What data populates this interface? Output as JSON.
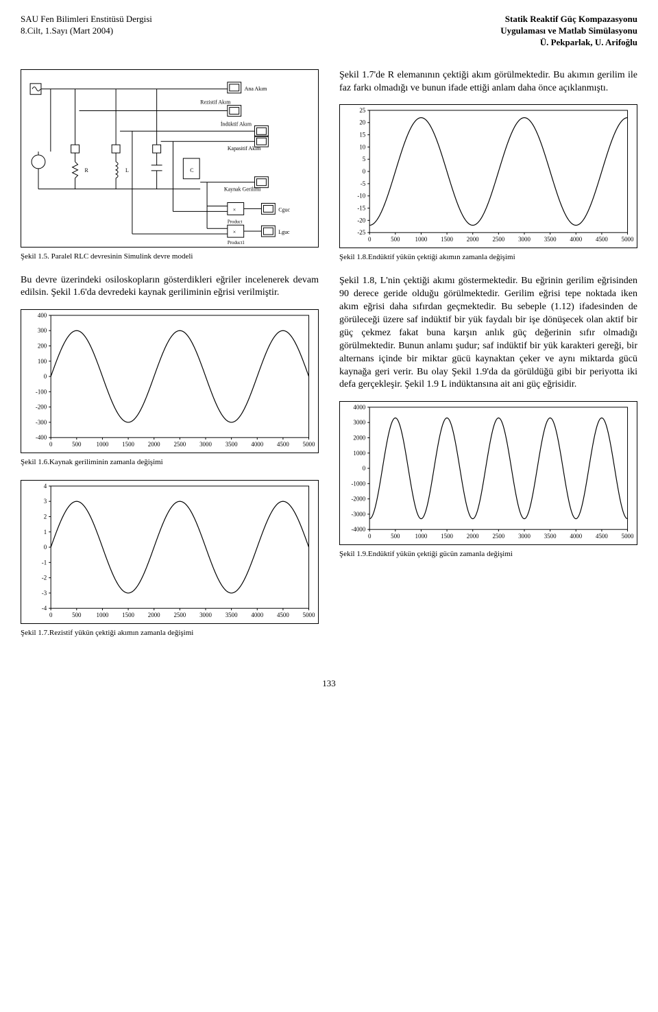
{
  "header": {
    "left1": "SAU Fen Bilimleri Enstitüsü Dergisi",
    "left2": "8.Cilt, 1.Sayı (Mart 2004)",
    "right1": "Statik Reaktif Güç Kompazasyonu",
    "right2": "Uygulaması ve Matlab Simülasyonu",
    "right3": "Ü. Pekparlak, U. Arifoğlu"
  },
  "blockdiag": {
    "labels": {
      "anaAkim": "Ana Akım",
      "rezistifAkim": "Rezistif Akım",
      "induktifAkim": "İndüktif Akım",
      "kapasitifAkim": "Kapasitif Akım",
      "kaynakGerilimi": "Kaynak Gerilimi",
      "product": "Product",
      "product1": "Product1",
      "cguc": "Cguc",
      "lguc": "Lguc",
      "R": "R",
      "L": "L",
      "C": "C",
      "x": "×"
    }
  },
  "caption15": "Şekil 1.5. Paralel RLC devresinin Simulink devre modeli",
  "para_left_1": "Bu devre üzerindeki osiloskopların gösterdikleri eğriler incelenerek devam edilsin. Şekil 1.6'da devredeki kaynak geriliminin eğrisi verilmiştir.",
  "caption16": "Şekil 1.6.Kaynak geriliminin zamanla değişimi",
  "caption17": "Şekil 1.7.Rezistif yükün çektiği akımın zamanla değişimi",
  "para_right_1": "Şekil 1.7'de R elemanının çektiği akım görülmektedir. Bu akımın gerilim ile faz farkı olmadığı ve bunun ifade ettiği anlam daha önce açıklanmıştı.",
  "caption18": "Şekil 1.8.Endüktif yükün çektiği akımın zamanla değişimi",
  "para_right_2": "Şekil 1.8, L'nin çektiği akımı göstermektedir. Bu eğrinin gerilim eğrisinden 90 derece geride olduğu görülmektedir. Gerilim eğrisi tepe noktada iken akım eğrisi daha sıfırdan geçmektedir. Bu sebeple (1.12) ifadesinden de görüleceği üzere saf indüktif bir yük faydalı bir işe dönüşecek olan aktif bir güç çekmez fakat buna karşın anlık güç değerinin sıfır olmadığı görülmektedir. Bunun anlamı şudur; saf indüktif bir yük karakteri gereği, bir alternans içinde bir miktar gücü kaynaktan çeker ve aynı miktarda gücü kaynağa geri verir. Bu olay Şekil 1.9'da da görüldüğü gibi bir periyotta iki defa gerçekleşir. Şekil 1.9 L indüktansına ait ani güç eğrisidir.",
  "caption19": "Şekil 1.9.Endüktif yükün çektiği gücün zamanla değişimi",
  "chart16": {
    "type": "line",
    "xlim": [
      0,
      5000
    ],
    "xtick_step": 500,
    "ylim": [
      -400,
      400
    ],
    "ytick_step": 100,
    "yticks": [
      "-400",
      "-300",
      "-200",
      "-100",
      "0",
      "100",
      "200",
      "300",
      "400"
    ],
    "amplitude": 300,
    "phase_deg": 0,
    "period": 2000,
    "line_color": "#000000",
    "border_color": "#000000",
    "background_color": "#ffffff",
    "tick_fontsize": 9
  },
  "chart17": {
    "type": "line",
    "xlim": [
      0,
      5000
    ],
    "xtick_step": 500,
    "ylim": [
      -4,
      4
    ],
    "ytick_step": 1,
    "yticks": [
      "-4",
      "-3",
      "-2",
      "-1",
      "0",
      "1",
      "2",
      "3",
      "4"
    ],
    "amplitude": 3,
    "phase_deg": 0,
    "period": 2000,
    "line_color": "#000000",
    "border_color": "#000000",
    "background_color": "#ffffff",
    "tick_fontsize": 9
  },
  "chart18": {
    "type": "line",
    "xlim": [
      0,
      5000
    ],
    "xtick_step": 500,
    "ylim": [
      -25,
      25
    ],
    "ytick_step": 5,
    "yticks": [
      "-25",
      "-20",
      "-15",
      "-10",
      "-5",
      "0",
      "5",
      "10",
      "15",
      "20",
      "25"
    ],
    "amplitude": 22,
    "phase_deg": -90,
    "period": 2000,
    "line_color": "#000000",
    "border_color": "#000000",
    "background_color": "#ffffff",
    "tick_fontsize": 9
  },
  "chart19": {
    "type": "line",
    "xlim": [
      0,
      5000
    ],
    "xtick_step": 500,
    "ylim": [
      -4000,
      4000
    ],
    "ytick_step": 1000,
    "yticks": [
      "-4000",
      "-3000",
      "-2000",
      "-1000",
      "0",
      "1000",
      "2000",
      "3000",
      "4000"
    ],
    "amplitude": 3300,
    "phase_deg": -90,
    "period": 1000,
    "line_color": "#000000",
    "border_color": "#000000",
    "background_color": "#ffffff",
    "tick_fontsize": 9
  },
  "pagenum": "133"
}
